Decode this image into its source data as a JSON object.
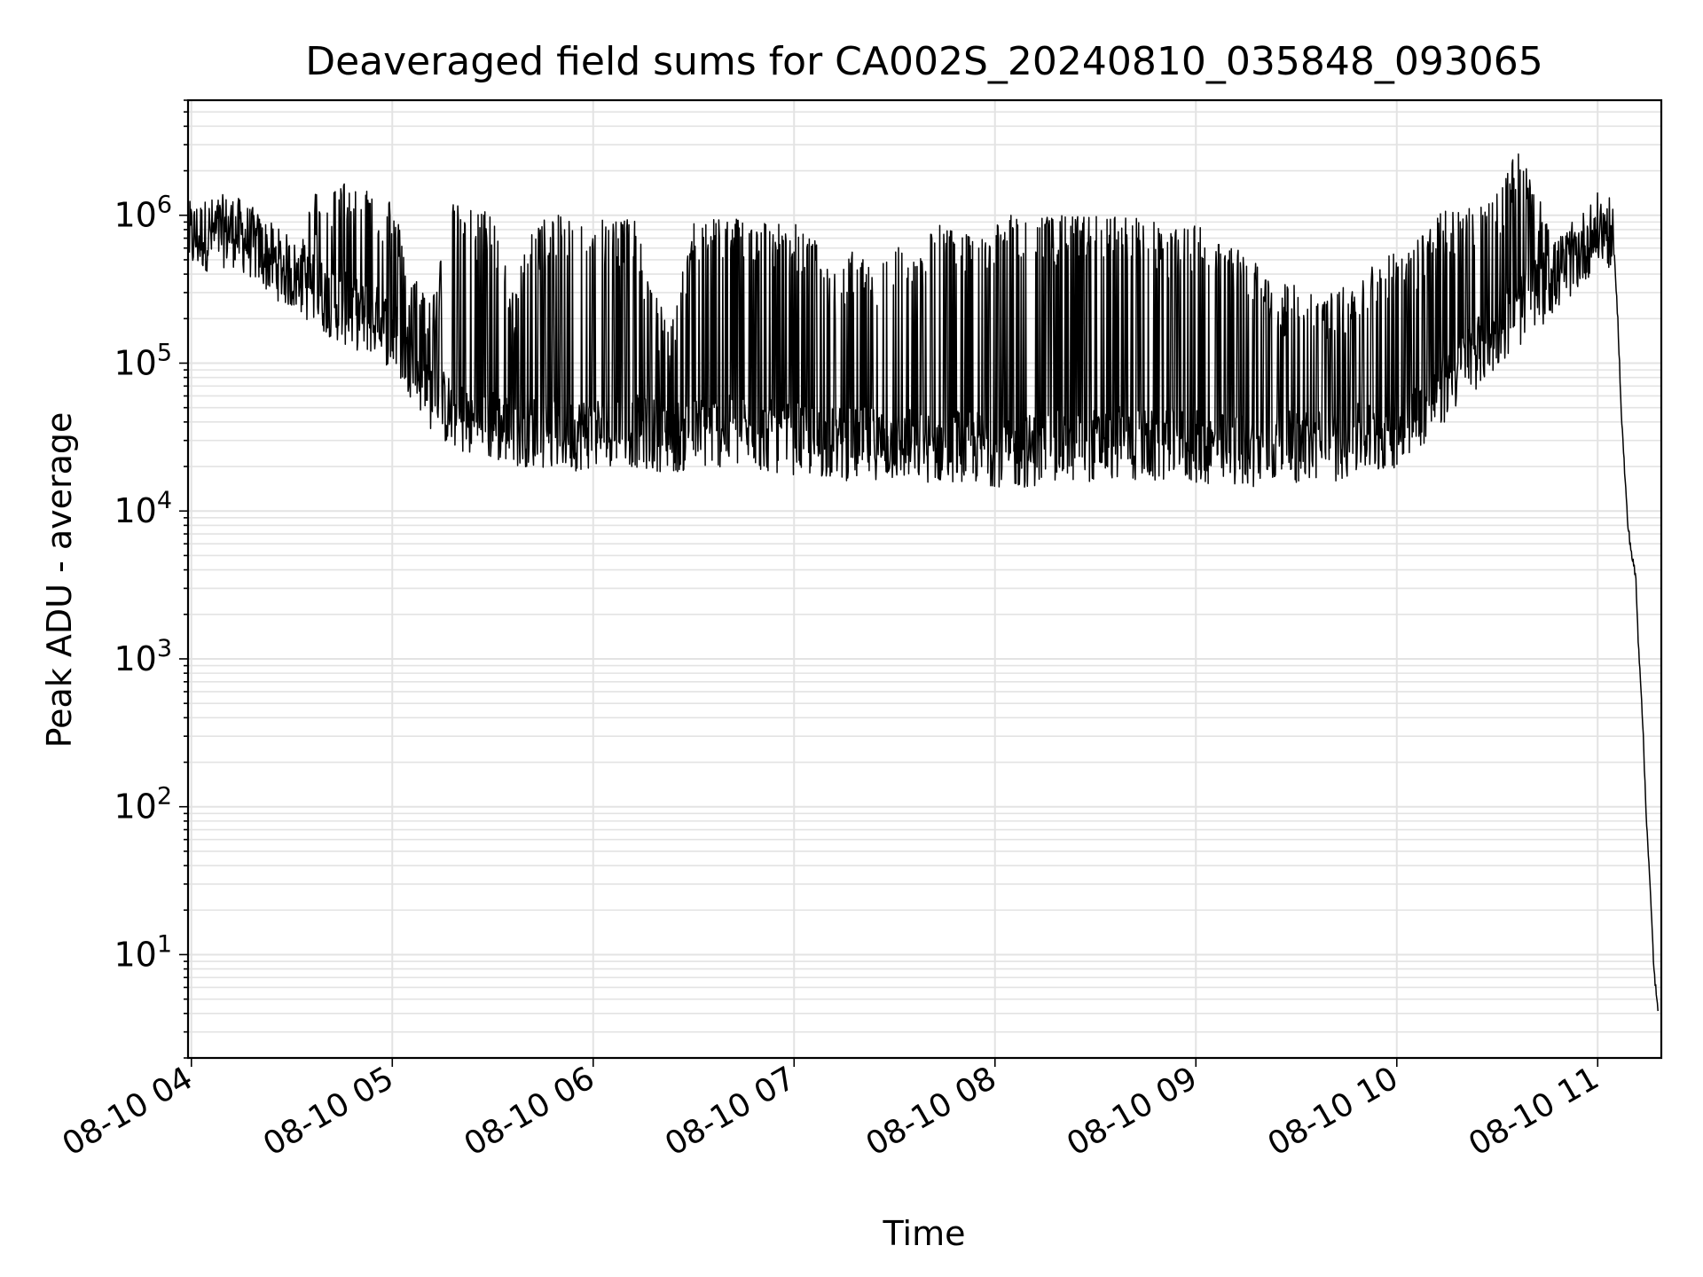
{
  "chart_data": {
    "type": "line",
    "title": "Deaveraged field sums for CA002S_20240810_035848_093065",
    "xlabel": "Time",
    "ylabel": "Peak ADU - average",
    "x_ticks": [
      "08-10 04",
      "08-10 05",
      "08-10 06",
      "08-10 07",
      "08-10 08",
      "08-10 09",
      "08-10 10",
      "08-10 11"
    ],
    "y_scale": "log",
    "y_ticks": [
      {
        "base": "10",
        "exp": "1"
      },
      {
        "base": "10",
        "exp": "2"
      },
      {
        "base": "10",
        "exp": "3"
      },
      {
        "base": "10",
        "exp": "4"
      },
      {
        "base": "10",
        "exp": "5"
      },
      {
        "base": "10",
        "exp": "6"
      }
    ],
    "xlim": [
      "2024-08-10 03:59",
      "2024-08-10 11:19"
    ],
    "ylim": [
      2,
      6000000
    ],
    "grid": true,
    "line_color": "#000000",
    "series": [
      {
        "time_hours": [
          3.99,
          4.1,
          4.2,
          4.3,
          4.4,
          4.5,
          4.6,
          4.7,
          4.8,
          4.9,
          5.0,
          5.1,
          5.2,
          5.3,
          5.4,
          5.5,
          5.6,
          5.7,
          5.8,
          5.9,
          6.0,
          6.1,
          6.2,
          6.3,
          6.4,
          6.5,
          6.6,
          6.7,
          6.8,
          6.9,
          7.0,
          7.1,
          7.2,
          7.3,
          7.4,
          7.5,
          7.6,
          7.7,
          7.8,
          7.9,
          8.0,
          8.1,
          8.2,
          8.3,
          8.4,
          8.5,
          8.6,
          8.7,
          8.8,
          8.9,
          9.0,
          9.1,
          9.2,
          9.3,
          9.4,
          9.5,
          9.6,
          9.7,
          9.8,
          9.9,
          10.0,
          10.1,
          10.2,
          10.3,
          10.4,
          10.5,
          10.6,
          10.7,
          10.8,
          10.9,
          11.0,
          11.05,
          11.08,
          11.1,
          11.12,
          11.15,
          11.17,
          11.19,
          11.2,
          11.22,
          11.24,
          11.26,
          11.28,
          11.3
        ],
        "baseline": [
          700000,
          750000,
          800000,
          650000,
          500000,
          400000,
          320000,
          260000,
          220000,
          200000,
          160000,
          100000,
          60000,
          45000,
          40000,
          38000,
          36000,
          35000,
          34000,
          33000,
          34000,
          36000,
          35000,
          33000,
          32000,
          33000,
          35000,
          34000,
          33000,
          32000,
          31000,
          30000,
          29000,
          28000,
          29000,
          28000,
          28000,
          27000,
          28000,
          27000,
          26000,
          25000,
          26000,
          27000,
          28000,
          28000,
          29000,
          28000,
          27000,
          28000,
          27000,
          26000,
          26000,
          26000,
          27000,
          27000,
          28000,
          28000,
          30000,
          32000,
          35000,
          45000,
          60000,
          85000,
          120000,
          160000,
          220000,
          300000,
          400000,
          550000,
          800000,
          800000,
          600000,
          200000,
          40000,
          8000,
          5000,
          3500,
          1500,
          500,
          100,
          30,
          8,
          4
        ],
        "spike_high": [
          800000,
          900000,
          850000,
          700000,
          600000,
          900000,
          1500000,
          1600000,
          1800000,
          1600000,
          1300000,
          400000,
          300000,
          1200000,
          1100000,
          1100000,
          300000,
          900000,
          1000000,
          1000000,
          1000000,
          1000000,
          1000000,
          300000,
          200000,
          1000000,
          1000000,
          1000000,
          1000000,
          900000,
          900000,
          700000,
          400000,
          600000,
          400000,
          700000,
          500000,
          900000,
          800000,
          700000,
          1000000,
          1000000,
          1000000,
          1000000,
          1000000,
          1000000,
          1000000,
          1000000,
          900000,
          800000,
          900000,
          700000,
          600000,
          500000,
          300000,
          400000,
          300000,
          300000,
          400000,
          500000,
          600000,
          700000,
          1000000,
          1200000,
          1300000,
          1500000,
          3000000,
          1300000,
          1000000,
          900000,
          1000000,
          900000,
          700000,
          200000,
          40000,
          8000,
          5000,
          3500,
          1500,
          500,
          100,
          30,
          8,
          4
        ]
      }
    ]
  }
}
